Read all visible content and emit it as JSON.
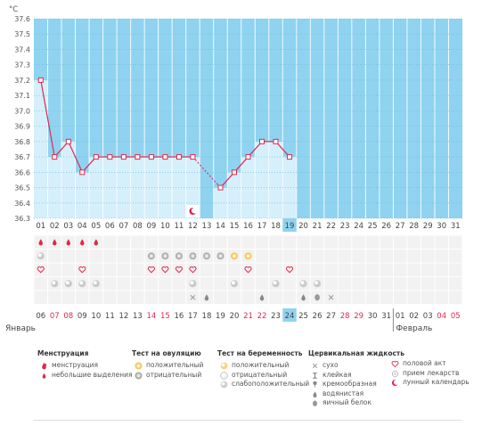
{
  "chart_data": {
    "type": "line",
    "unit_label": "°C",
    "ylim": [
      36.3,
      37.6
    ],
    "y_ticks": [
      "37.6",
      "37.5",
      "37.4",
      "37.3",
      "37.2",
      "37.1",
      "37.0",
      "36.9",
      "36.8",
      "36.7",
      "36.6",
      "36.5",
      "36.4",
      "36.3"
    ],
    "cycle_days": [
      "01",
      "02",
      "03",
      "04",
      "05",
      "06",
      "07",
      "08",
      "09",
      "10",
      "11",
      "12",
      "13",
      "14",
      "15",
      "16",
      "17",
      "18",
      "19",
      "20",
      "21",
      "22",
      "23",
      "24",
      "25",
      "26",
      "27",
      "28",
      "29",
      "30",
      "31"
    ],
    "highlighted_day_index": 18,
    "temperatures": [
      37.2,
      36.7,
      36.8,
      36.6,
      36.7,
      36.7,
      36.7,
      36.7,
      36.7,
      36.7,
      36.7,
      36.7,
      null,
      36.5,
      36.6,
      36.7,
      36.8,
      36.8,
      36.7
    ],
    "dashed_segment": [
      11,
      13
    ],
    "dates": [
      {
        "label": "06",
        "red": false
      },
      {
        "label": "07",
        "red": true
      },
      {
        "label": "08",
        "red": true
      },
      {
        "label": "09",
        "red": false
      },
      {
        "label": "10",
        "red": false
      },
      {
        "label": "11",
        "red": false
      },
      {
        "label": "12",
        "red": false
      },
      {
        "label": "13",
        "red": false
      },
      {
        "label": "14",
        "red": true
      },
      {
        "label": "15",
        "red": true
      },
      {
        "label": "16",
        "red": false
      },
      {
        "label": "17",
        "red": false
      },
      {
        "label": "18",
        "red": false
      },
      {
        "label": "19",
        "red": false
      },
      {
        "label": "20",
        "red": false
      },
      {
        "label": "21",
        "red": true
      },
      {
        "label": "22",
        "red": true
      },
      {
        "label": "23",
        "red": false
      },
      {
        "label": "24",
        "red": false,
        "highlight": true
      },
      {
        "label": "25",
        "red": false
      },
      {
        "label": "26",
        "red": false
      },
      {
        "label": "27",
        "red": false
      },
      {
        "label": "28",
        "red": true
      },
      {
        "label": "29",
        "red": true
      },
      {
        "label": "30",
        "red": false
      },
      {
        "label": "31",
        "red": false
      },
      {
        "label": "01",
        "red": false
      },
      {
        "label": "02",
        "red": false
      },
      {
        "label": "03",
        "red": false
      },
      {
        "label": "04",
        "red": true
      },
      {
        "label": "05",
        "red": true
      }
    ],
    "month_labels": [
      "Январь",
      "Февраль"
    ],
    "moon_day_index": 11,
    "marker_rows": [
      {
        "name": "menstruation",
        "marks": [
          [
            0,
            "drop"
          ],
          [
            1,
            "drop"
          ],
          [
            2,
            "drop"
          ],
          [
            3,
            "drop"
          ],
          [
            4,
            "drop"
          ]
        ]
      },
      {
        "name": "ovulation-test",
        "marks": [
          [
            0,
            "pregnancy-weak"
          ],
          [
            8,
            "ovulation-negative"
          ],
          [
            9,
            "ovulation-negative"
          ],
          [
            10,
            "ovulation-negative"
          ],
          [
            11,
            "ovulation-negative"
          ],
          [
            12,
            "ovulation-negative"
          ],
          [
            13,
            "ovulation-negative"
          ],
          [
            14,
            "ovulation-positive"
          ],
          [
            15,
            "ovulation-positive"
          ]
        ]
      },
      {
        "name": "sex",
        "marks": [
          [
            0,
            "heart"
          ],
          [
            3,
            "heart"
          ],
          [
            8,
            "heart"
          ],
          [
            9,
            "heart"
          ],
          [
            10,
            "heart"
          ],
          [
            11,
            "heart"
          ],
          [
            15,
            "heart"
          ],
          [
            18,
            "heart"
          ]
        ]
      },
      {
        "name": "pregnancy-test",
        "marks": [
          [
            1,
            "pregnancy-weak"
          ],
          [
            2,
            "pregnancy-weak"
          ],
          [
            3,
            "pregnancy-weak"
          ],
          [
            4,
            "pregnancy-weak"
          ],
          [
            11,
            "pregnancy-weak"
          ],
          [
            14,
            "pregnancy-weak"
          ],
          [
            17,
            "pregnancy-weak"
          ],
          [
            19,
            "pregnancy-weak"
          ],
          [
            20,
            "pregnancy-weak"
          ]
        ]
      },
      {
        "name": "cervical-fluid",
        "marks": [
          [
            11,
            "dry"
          ],
          [
            12,
            "watery"
          ],
          [
            16,
            "watery"
          ],
          [
            19,
            "watery"
          ],
          [
            20,
            "eggwhite"
          ],
          [
            21,
            "dry"
          ]
        ]
      }
    ]
  },
  "legend": {
    "menstruation": {
      "title": "Менструация",
      "items": [
        "менструация",
        "небольшие выделения"
      ]
    },
    "ovulation": {
      "title": "Тест на овуляцию",
      "items": [
        "положительный",
        "отрицательный"
      ]
    },
    "pregnancy": {
      "title": "Тест на беременность",
      "items": [
        "положительный",
        "отрицательный",
        "слабоположительный"
      ]
    },
    "cervical": {
      "title": "Цервикальная жидкость",
      "items": [
        "сухо",
        "клейкая",
        "кремообразная",
        "водянистая",
        "яичный белок"
      ]
    },
    "other": {
      "items": [
        "половой акт",
        "прием лекарств",
        "лунный календарь"
      ]
    }
  }
}
